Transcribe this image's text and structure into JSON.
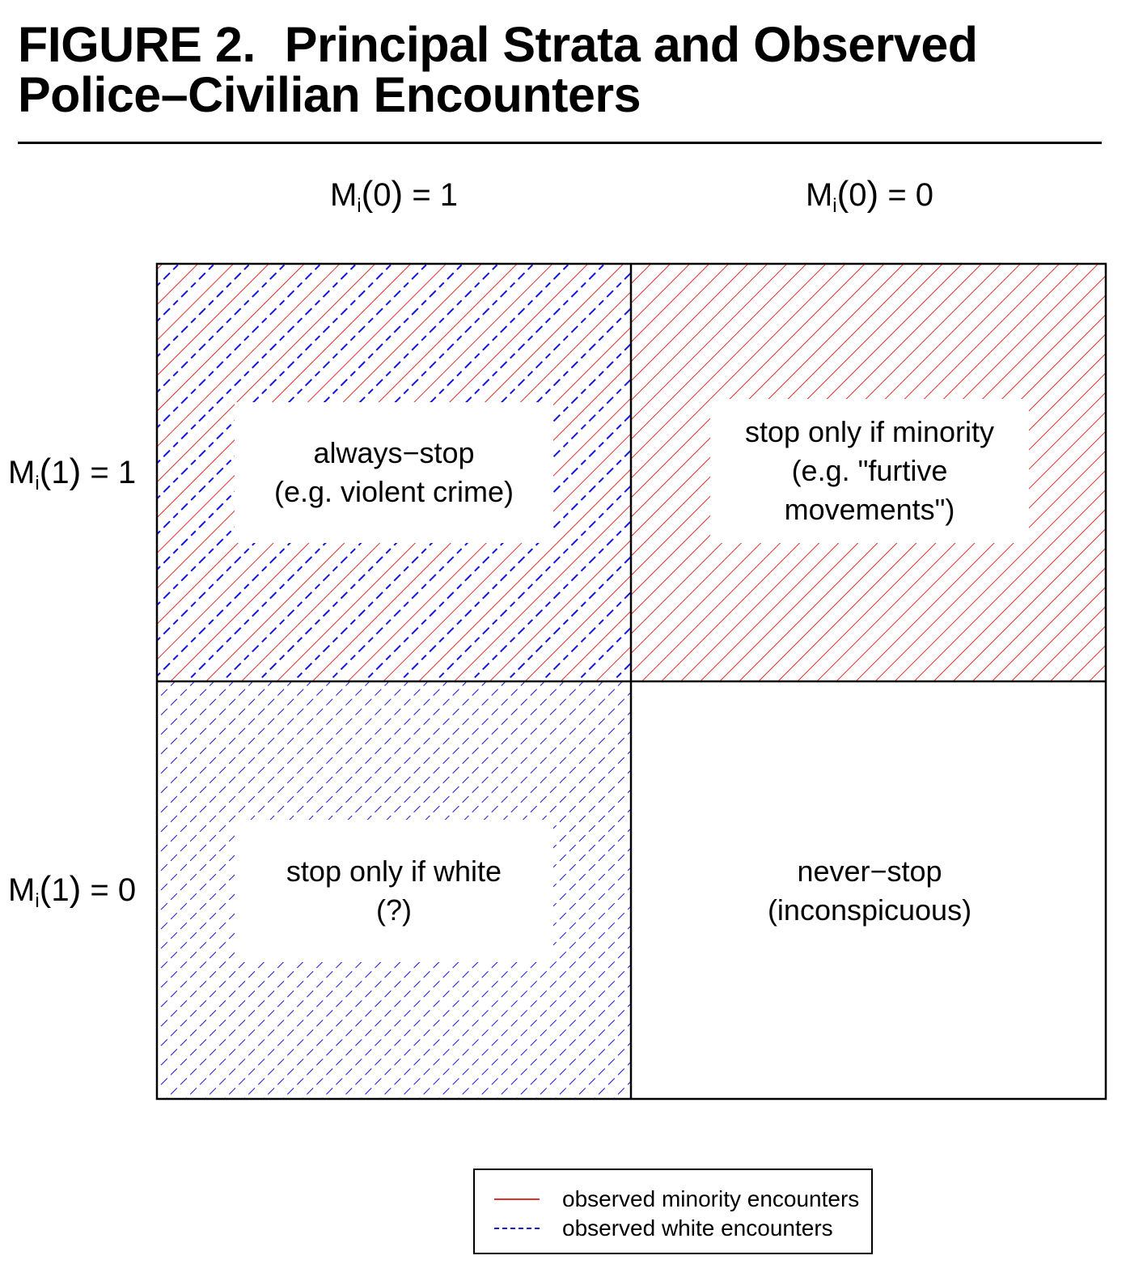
{
  "figure": {
    "title_number": "FIGURE 2.",
    "title_line1": "Principal Strata and Observed",
    "title_line2": "Police–Civilian Encounters"
  },
  "columns": [
    {
      "var": "M",
      "sub": "i",
      "arg": "0",
      "value": "= 1"
    },
    {
      "var": "M",
      "sub": "i",
      "arg": "0",
      "value": "= 0"
    }
  ],
  "rows": [
    {
      "var": "M",
      "sub": "i",
      "arg": "1",
      "value": "= 1"
    },
    {
      "var": "M",
      "sub": "i",
      "arg": "1",
      "value": "= 0"
    }
  ],
  "cells": {
    "always_stop": {
      "line1": "always−stop",
      "line2": "(e.g. violent crime)"
    },
    "minority_only": {
      "line1": "stop only if minority",
      "line2": "(e.g. \"furtive",
      "line3": "movements\")"
    },
    "white_only": {
      "line1": "stop only if white",
      "line2": "(?)"
    },
    "never_stop": {
      "line1": "never−stop",
      "line2": "(inconspicuous)"
    }
  },
  "legend": {
    "placement": "bottom-right",
    "items": [
      {
        "label": "observed minority encounters",
        "color": "#e0302a",
        "style": "solid"
      },
      {
        "label": "observed white encounters",
        "color": "#1515e0",
        "style": "dashed"
      }
    ]
  },
  "colors": {
    "minority": "#e0302a",
    "white": "#1515e0",
    "text": "#000000"
  }
}
